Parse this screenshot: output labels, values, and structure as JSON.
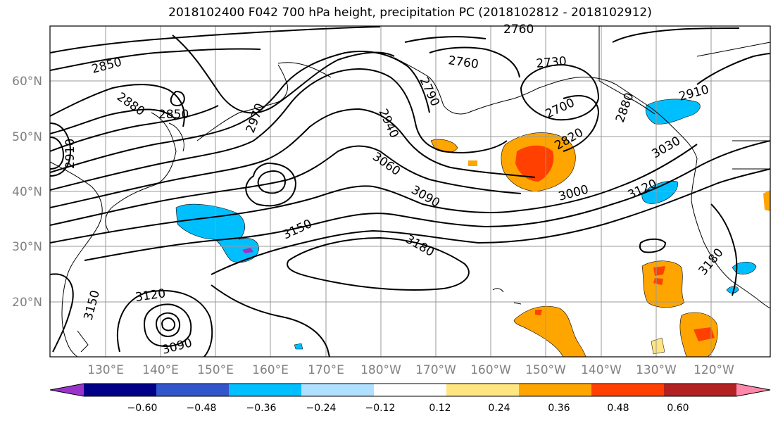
{
  "title": "2018102400 F042 700 hPa height, precipitation PC (2018102812 - 2018102912)",
  "map": {
    "lon_labels": [
      "130°E",
      "140°E",
      "150°E",
      "160°E",
      "170°E",
      "180°W",
      "170°W",
      "160°W",
      "150°W",
      "140°W",
      "130°W",
      "120°W"
    ],
    "lat_labels": [
      "60°N",
      "50°N",
      "40°N",
      "30°N",
      "20°N"
    ],
    "contour_labels": [
      "2760",
      "2850",
      "2760",
      "2730",
      "2790",
      "2880",
      "2850",
      "2970",
      "2940",
      "2700",
      "2880",
      "2910",
      "2910",
      "2820",
      "3030",
      "3060",
      "3090",
      "3000",
      "3120",
      "3150",
      "3180",
      "3180",
      "3150",
      "3120",
      "3090"
    ]
  },
  "colorbar": {
    "ticks": [
      "−0.60",
      "−0.48",
      "−0.36",
      "−0.24",
      "−0.12",
      "0.12",
      "0.24",
      "0.36",
      "0.48",
      "0.60"
    ],
    "colors": [
      "#9933cc",
      "#000088",
      "#3355cc",
      "#00bfff",
      "#b0e0ff",
      "#ffffff",
      "#ffe680",
      "#ffa500",
      "#ff4000",
      "#b22222",
      "#ff88aa"
    ]
  }
}
